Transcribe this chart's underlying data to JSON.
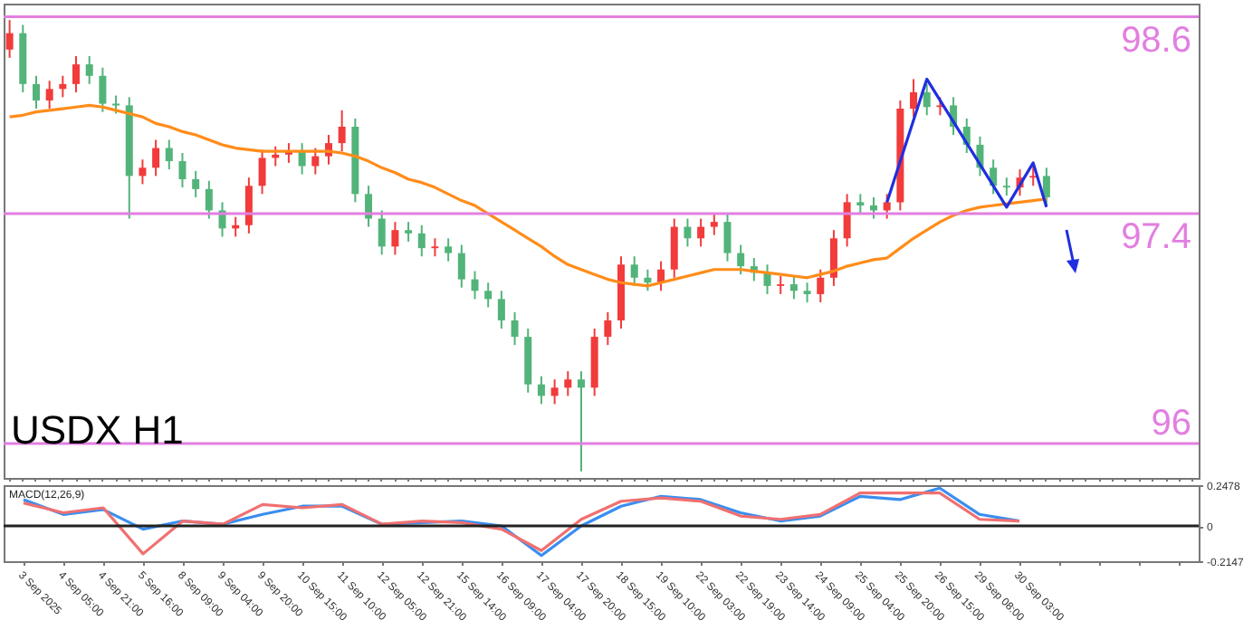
{
  "chart_data": [
    {
      "type": "candlestick",
      "categories": [
        null,
        null,
        null,
        null,
        null,
        null,
        null,
        null,
        null,
        null,
        null,
        null,
        null,
        null,
        null,
        null,
        null,
        null,
        null,
        null,
        null,
        null,
        null,
        null,
        null,
        null,
        null,
        null,
        null,
        null,
        null,
        null,
        null,
        null,
        null,
        null,
        null,
        null,
        null,
        null,
        null,
        null,
        null,
        null,
        null,
        null,
        null,
        null,
        null,
        null,
        null,
        null,
        null,
        null,
        null,
        null,
        null,
        null,
        null,
        null,
        null,
        null,
        null,
        null,
        null,
        null,
        null,
        null,
        null,
        null,
        null,
        null,
        null,
        null,
        null,
        null,
        null,
        null,
        null,
        null,
        null,
        null,
        null,
        null,
        null,
        null,
        null,
        null,
        null,
        null
      ],
      "ohlc": [
        [
          98.4,
          98.58,
          98.35,
          98.5
        ],
        [
          98.5,
          98.55,
          98.14,
          98.19
        ],
        [
          98.19,
          98.24,
          98.04,
          98.09
        ],
        [
          98.09,
          98.21,
          98.04,
          98.16
        ],
        [
          98.16,
          98.24,
          98.11,
          98.19
        ],
        [
          98.19,
          98.36,
          98.14,
          98.31
        ],
        [
          98.31,
          98.36,
          98.19,
          98.24
        ],
        [
          98.24,
          98.29,
          98.02,
          98.07
        ],
        [
          98.07,
          98.12,
          98.01,
          98.06
        ],
        [
          98.06,
          98.11,
          97.37,
          97.63
        ],
        [
          97.63,
          97.73,
          97.58,
          97.68
        ],
        [
          97.68,
          97.85,
          97.63,
          97.8
        ],
        [
          97.8,
          97.85,
          97.67,
          97.72
        ],
        [
          97.72,
          97.77,
          97.56,
          97.61
        ],
        [
          97.61,
          97.66,
          97.5,
          97.55
        ],
        [
          97.55,
          97.6,
          97.37,
          97.42
        ],
        [
          97.42,
          97.47,
          97.26,
          97.31
        ],
        [
          97.31,
          97.38,
          97.26,
          97.33
        ],
        [
          97.33,
          97.62,
          97.28,
          97.57
        ],
        [
          97.57,
          97.79,
          97.52,
          97.74
        ],
        [
          97.74,
          97.81,
          97.69,
          97.76
        ],
        [
          97.76,
          97.83,
          97.71,
          97.78
        ],
        [
          97.78,
          97.83,
          97.64,
          97.69
        ],
        [
          97.69,
          97.8,
          97.64,
          97.75
        ],
        [
          97.75,
          97.88,
          97.7,
          97.83
        ],
        [
          97.83,
          98.03,
          97.78,
          97.93
        ],
        [
          97.93,
          97.98,
          97.47,
          97.52
        ],
        [
          97.52,
          97.57,
          97.32,
          97.37
        ],
        [
          97.37,
          97.42,
          97.15,
          97.2
        ],
        [
          97.2,
          97.35,
          97.15,
          97.3
        ],
        [
          97.3,
          97.35,
          97.23,
          97.28
        ],
        [
          97.28,
          97.33,
          97.14,
          97.19
        ],
        [
          97.19,
          97.25,
          97.14,
          97.2
        ],
        [
          97.2,
          97.25,
          97.11,
          97.16
        ],
        [
          97.16,
          97.21,
          96.95,
          97.0
        ],
        [
          97.0,
          97.05,
          96.88,
          96.93
        ],
        [
          96.93,
          96.98,
          96.83,
          96.88
        ],
        [
          96.88,
          96.93,
          96.7,
          96.75
        ],
        [
          96.75,
          96.8,
          96.6,
          96.65
        ],
        [
          96.65,
          96.7,
          96.31,
          96.36
        ],
        [
          96.36,
          96.41,
          96.24,
          96.29
        ],
        [
          96.29,
          96.39,
          96.24,
          96.34
        ],
        [
          96.34,
          96.44,
          96.29,
          96.39
        ],
        [
          96.39,
          96.44,
          95.83,
          96.34
        ],
        [
          96.34,
          96.7,
          96.29,
          96.65
        ],
        [
          96.65,
          96.8,
          96.6,
          96.75
        ],
        [
          96.75,
          97.14,
          96.7,
          97.09
        ],
        [
          97.09,
          97.14,
          96.96,
          97.01
        ],
        [
          97.01,
          97.06,
          96.93,
          96.98
        ],
        [
          96.98,
          97.11,
          96.93,
          97.06
        ],
        [
          97.06,
          97.37,
          97.01,
          97.32
        ],
        [
          97.32,
          97.37,
          97.2,
          97.25
        ],
        [
          97.25,
          97.37,
          97.2,
          97.32
        ],
        [
          97.32,
          97.4,
          97.27,
          97.35
        ],
        [
          97.35,
          97.4,
          97.11,
          97.16
        ],
        [
          97.16,
          97.21,
          97.03,
          97.08
        ],
        [
          97.08,
          97.13,
          96.99,
          97.04
        ],
        [
          97.04,
          97.09,
          96.91,
          96.96
        ],
        [
          96.96,
          97.02,
          96.91,
          96.97
        ],
        [
          96.97,
          97.02,
          96.88,
          96.93
        ],
        [
          96.93,
          96.98,
          96.86,
          96.91
        ],
        [
          96.91,
          97.06,
          96.86,
          97.01
        ],
        [
          97.01,
          97.3,
          96.96,
          97.25
        ],
        [
          97.25,
          97.52,
          97.2,
          97.47
        ],
        [
          97.47,
          97.52,
          97.4,
          97.45
        ],
        [
          97.45,
          97.5,
          97.37,
          97.42
        ],
        [
          97.42,
          97.52,
          97.37,
          97.47
        ],
        [
          97.47,
          98.09,
          97.42,
          98.04
        ],
        [
          98.04,
          98.22,
          97.99,
          98.14
        ],
        [
          98.14,
          98.19,
          98.0,
          98.05
        ],
        [
          98.05,
          98.11,
          98.0,
          98.06
        ],
        [
          98.06,
          98.11,
          97.88,
          97.93
        ],
        [
          97.93,
          97.98,
          97.77,
          97.82
        ],
        [
          97.82,
          97.87,
          97.63,
          97.68
        ],
        [
          97.68,
          97.73,
          97.52,
          97.57
        ],
        [
          97.57,
          97.62,
          97.51,
          97.56
        ],
        [
          97.56,
          97.67,
          97.51,
          97.62
        ],
        [
          97.62,
          97.7,
          97.57,
          97.63
        ],
        [
          97.63,
          97.68,
          97.45,
          97.5
        ],
        null,
        null,
        null,
        null,
        null,
        null,
        null,
        null,
        null,
        null,
        null
      ],
      "colors": [
        "#f23b3b",
        "#52b47a",
        "#52b47a",
        "#f23b3b",
        "#f23b3b",
        "#f23b3b",
        "#52b47a",
        "#52b47a",
        "#52b47a",
        "#52b47a",
        "#f23b3b",
        "#f23b3b",
        "#52b47a",
        "#52b47a",
        "#52b47a",
        "#52b47a",
        "#52b47a",
        "#f23b3b",
        "#f23b3b",
        "#f23b3b",
        "#f23b3b",
        "#f23b3b",
        "#52b47a",
        "#f23b3b",
        "#f23b3b",
        "#f23b3b",
        "#52b47a",
        "#52b47a",
        "#52b47a",
        "#f23b3b",
        "#52b47a",
        "#52b47a",
        "#f23b3b",
        "#52b47a",
        "#52b47a",
        "#52b47a",
        "#52b47a",
        "#52b47a",
        "#52b47a",
        "#52b47a",
        "#52b47a",
        "#f23b3b",
        "#f23b3b",
        "#52b47a",
        "#f23b3b",
        "#f23b3b",
        "#f23b3b",
        "#52b47a",
        "#52b47a",
        "#f23b3b",
        "#f23b3b",
        "#52b47a",
        "#f23b3b",
        "#f23b3b",
        "#52b47a",
        "#52b47a",
        "#52b47a",
        "#52b47a",
        "#f23b3b",
        "#52b47a",
        "#52b47a",
        "#f23b3b",
        "#f23b3b",
        "#f23b3b",
        "#52b47a",
        "#52b47a",
        "#f23b3b",
        "#f23b3b",
        "#f23b3b",
        "#52b47a",
        "#f23b3b",
        "#52b47a",
        "#52b47a",
        "#52b47a",
        "#52b47a",
        "#52b47a",
        "#f23b3b",
        "#f23b3b",
        "#52b47a",
        null,
        null,
        null,
        null,
        null,
        null,
        null,
        null,
        null,
        null,
        null
      ],
      "series": [
        {
          "type": "line",
          "color": "#ff8c1a",
          "values": [
            97.99,
            98.0,
            98.02,
            98.03,
            98.04,
            98.05,
            98.06,
            98.05,
            98.03,
            98.01,
            97.99,
            97.95,
            97.93,
            97.9,
            97.88,
            97.85,
            97.82,
            97.8,
            97.79,
            97.78,
            97.78,
            97.78,
            97.78,
            97.78,
            97.78,
            97.77,
            97.75,
            97.72,
            97.68,
            97.65,
            97.61,
            97.59,
            97.56,
            97.52,
            97.48,
            97.45,
            97.4,
            97.35,
            97.3,
            97.25,
            97.2,
            97.14,
            97.09,
            97.06,
            97.03,
            97.0,
            96.98,
            96.97,
            96.96,
            96.98,
            97.0,
            97.02,
            97.04,
            97.06,
            97.06,
            97.06,
            97.05,
            97.04,
            97.03,
            97.02,
            97.01,
            97.03,
            97.05,
            97.08,
            97.1,
            97.12,
            97.13,
            97.19,
            97.25,
            97.3,
            97.35,
            97.39,
            97.42,
            97.44,
            97.45,
            97.46,
            97.47,
            97.48,
            97.49,
            null,
            null,
            null,
            null,
            null,
            null,
            null,
            null,
            null,
            null,
            null
          ]
        },
        {
          "type": "line",
          "color": "#1f2fe0",
          "values": [
            null,
            null,
            null,
            null,
            null,
            null,
            null,
            null,
            null,
            null,
            null,
            null,
            null,
            null,
            null,
            null,
            null,
            null,
            null,
            null,
            null,
            null,
            null,
            null,
            null,
            null,
            null,
            null,
            null,
            null,
            null,
            null,
            null,
            null,
            null,
            null,
            null,
            null,
            null,
            null,
            null,
            null,
            null,
            null,
            null,
            null,
            null,
            null,
            null,
            null,
            null,
            null,
            null,
            null,
            null,
            null,
            null,
            null,
            null,
            null,
            null,
            null,
            null,
            null,
            null,
            null,
            97.47,
            null,
            null,
            98.22,
            null,
            null,
            null,
            null,
            null,
            97.44,
            null,
            97.71,
            97.44,
            null,
            null,
            null,
            null,
            null,
            null,
            null,
            null,
            null,
            null,
            null
          ]
        }
      ],
      "ylim": [
        95.79,
        98.68
      ],
      "grid": false,
      "ref_lines": [
        {
          "axis": "y",
          "value": 98.6,
          "label": "98.6",
          "color": "#e27fe0"
        },
        {
          "axis": "y",
          "value": 97.4,
          "label": "97.4",
          "color": "#e27fe0"
        },
        {
          "axis": "y",
          "value": 96,
          "label": "96",
          "color": "#e27fe0"
        }
      ],
      "annotations": [
        "USDX H1"
      ]
    },
    {
      "type": "line",
      "title": "MACD(12,26,9)",
      "categories": [
        "3 Sep 2025",
        "4 Sep 05:00",
        "4 Sep 21:00",
        "5 Sep 16:00",
        "8 Sep 09:00",
        "9 Sep 04:00",
        "9 Sep 20:00",
        "10 Sep 15:00",
        "11 Sep 10:00",
        "12 Sep 05:00",
        "12 Sep 21:00",
        "15 Sep 14:00",
        "16 Sep 09:00",
        "17 Sep 04:00",
        "17 Sep 20:00",
        "18 Sep 15:00",
        "19 Sep 10:00",
        "22 Sep 03:00",
        "22 Sep 19:00",
        "23 Sep 14:00",
        "24 Sep 09:00",
        "25 Sep 04:00",
        "25 Sep 20:00",
        "26 Sep 15:00",
        "29 Sep 08:00",
        "30 Sep 03:00",
        null,
        null,
        null,
        null
      ],
      "series": [
        {
          "color": "#3a8ef0",
          "values": [
            0.16,
            0.07,
            0.1,
            -0.02,
            0.03,
            0.01,
            0.07,
            0.12,
            0.12,
            0.01,
            0.02,
            0.03,
            0.0,
            -0.18,
            0.0,
            0.12,
            0.18,
            0.16,
            0.08,
            0.03,
            0.06,
            0.18,
            0.16,
            0.23,
            0.07,
            0.03,
            null,
            null,
            null,
            null
          ]
        },
        {
          "color": "#f07070",
          "values": [
            0.14,
            0.08,
            0.11,
            -0.17,
            0.03,
            0.01,
            0.13,
            0.11,
            0.13,
            0.01,
            0.03,
            0.02,
            -0.02,
            -0.15,
            0.04,
            0.15,
            0.17,
            0.15,
            0.06,
            0.04,
            0.07,
            0.2,
            0.2,
            0.2,
            0.04,
            0.03,
            null,
            null,
            null,
            null
          ]
        }
      ],
      "ylim": [
        -0.2147,
        0.2478
      ],
      "yticks": [
        0.2478,
        0,
        -0.2147
      ],
      "grid": false,
      "ref_lines": [
        {
          "axis": "y",
          "value": 0,
          "color": "#222222"
        }
      ]
    }
  ]
}
